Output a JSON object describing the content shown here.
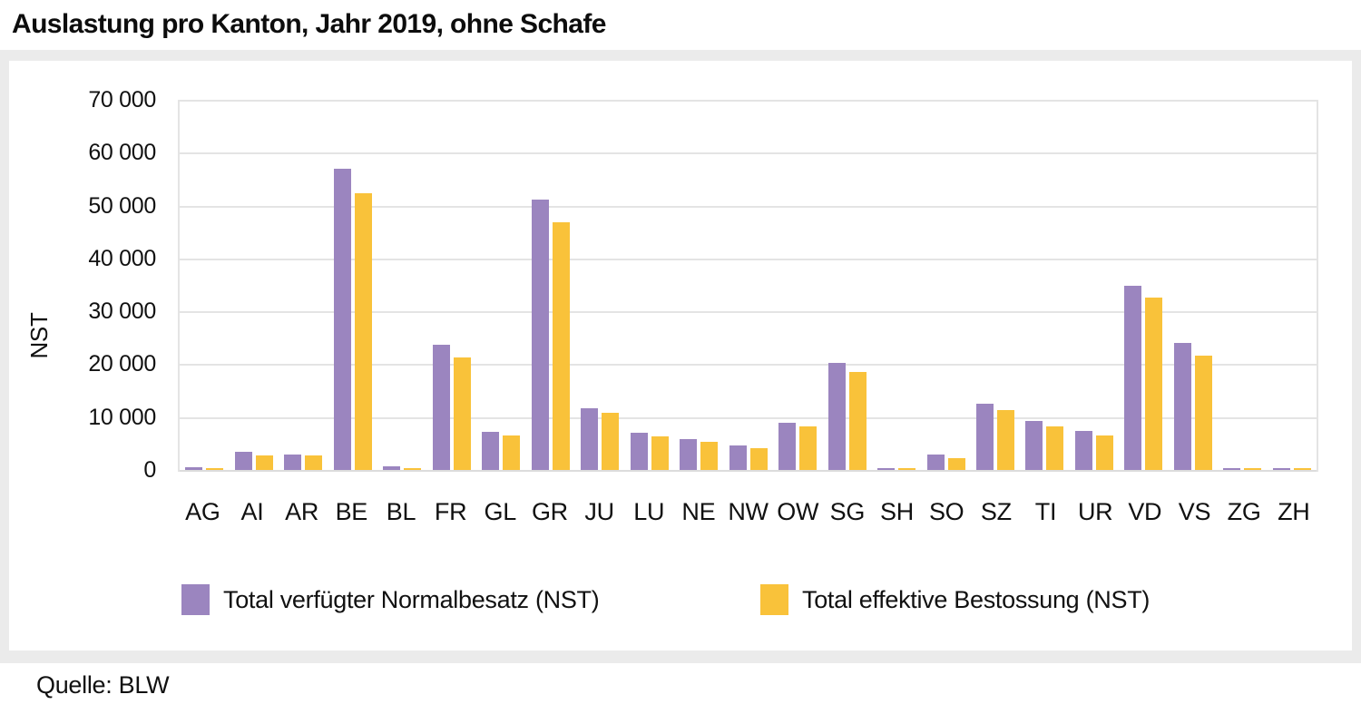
{
  "title": "Auslastung pro Kanton, Jahr 2019, ohne Schafe",
  "source": "Quelle: BLW",
  "colors": {
    "series1": "#9b85bf",
    "series2": "#f9c23a",
    "panel_background": "#ebebeb",
    "gridline": "#e4e4e4"
  },
  "chart_data": {
    "type": "bar",
    "title": "Auslastung pro Kanton, Jahr 2019, ohne Schafe",
    "xlabel": "",
    "ylabel": "NST",
    "ylim": [
      0,
      70000
    ],
    "ytick_step": 10000,
    "ytick_labels": [
      "70 000",
      "60 000",
      "50 000",
      "40 000",
      "30 000",
      "20 000",
      "10 000",
      "0"
    ],
    "grid": true,
    "legend_position": "bottom",
    "categories": [
      "AG",
      "AI",
      "AR",
      "BE",
      "BL",
      "FR",
      "GL",
      "GR",
      "JU",
      "LU",
      "NE",
      "NW",
      "OW",
      "SG",
      "SH",
      "SO",
      "SZ",
      "TI",
      "UR",
      "VD",
      "VS",
      "ZG",
      "ZH"
    ],
    "series": [
      {
        "name": "Total verfügter Normalbesatz (NST)",
        "color": "#9b85bf",
        "values": [
          500,
          3400,
          3000,
          57000,
          700,
          23600,
          7200,
          51200,
          11700,
          7000,
          5800,
          4600,
          8900,
          20300,
          400,
          2900,
          12500,
          9300,
          7300,
          34900,
          24000,
          350,
          250
        ]
      },
      {
        "name": "Total effektive Bestossung (NST)",
        "color": "#f9c23a",
        "values": [
          400,
          2800,
          2700,
          52300,
          300,
          21300,
          6600,
          46900,
          10800,
          6300,
          5300,
          4100,
          8300,
          18600,
          350,
          2300,
          11300,
          8200,
          6500,
          32600,
          21600,
          350,
          300
        ]
      }
    ]
  }
}
